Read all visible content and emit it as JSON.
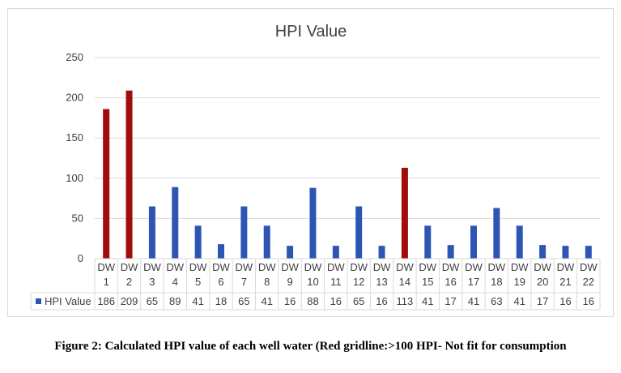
{
  "chart_data": {
    "type": "bar",
    "title": "HPI Value",
    "categories": [
      "DW 1",
      "DW 2",
      "DW 3",
      "DW 4",
      "DW 5",
      "DW 6",
      "DW 7",
      "DW 8",
      "DW 9",
      "DW 10",
      "DW 11",
      "DW 12",
      "DW 13",
      "DW 14",
      "DW 15",
      "DW 16",
      "DW 17",
      "DW 18",
      "DW 19",
      "DW 20",
      "DW 21",
      "DW 22"
    ],
    "series": [
      {
        "name": "HPI Value",
        "values": [
          186,
          209,
          65,
          89,
          41,
          18,
          65,
          41,
          16,
          88,
          16,
          65,
          16,
          113,
          41,
          17,
          41,
          63,
          41,
          17,
          16,
          16
        ]
      }
    ],
    "value_labels": [
      "186",
      "209",
      "65",
      "89",
      "41",
      "18",
      "65",
      "41",
      "16",
      "88",
      "16",
      "65",
      "16",
      "113",
      "41",
      "17",
      "41",
      "63",
      "41",
      "17",
      "16",
      "16"
    ],
    "ylim": [
      0,
      250
    ],
    "yticks": [
      "0",
      "50",
      "100",
      "150",
      "200",
      "250"
    ],
    "grid": true,
    "legend": "data-table",
    "colors": {
      "normal": "#2f55b4",
      "highlight": "#a00d0d",
      "grid": "#d9d9d9",
      "text": "#404040"
    },
    "highlight_indices": [
      0,
      1,
      13
    ]
  },
  "caption": "Figure 2: Calculated HPI value of each well water (Red gridline:>100 HPI- Not fit for consumption"
}
